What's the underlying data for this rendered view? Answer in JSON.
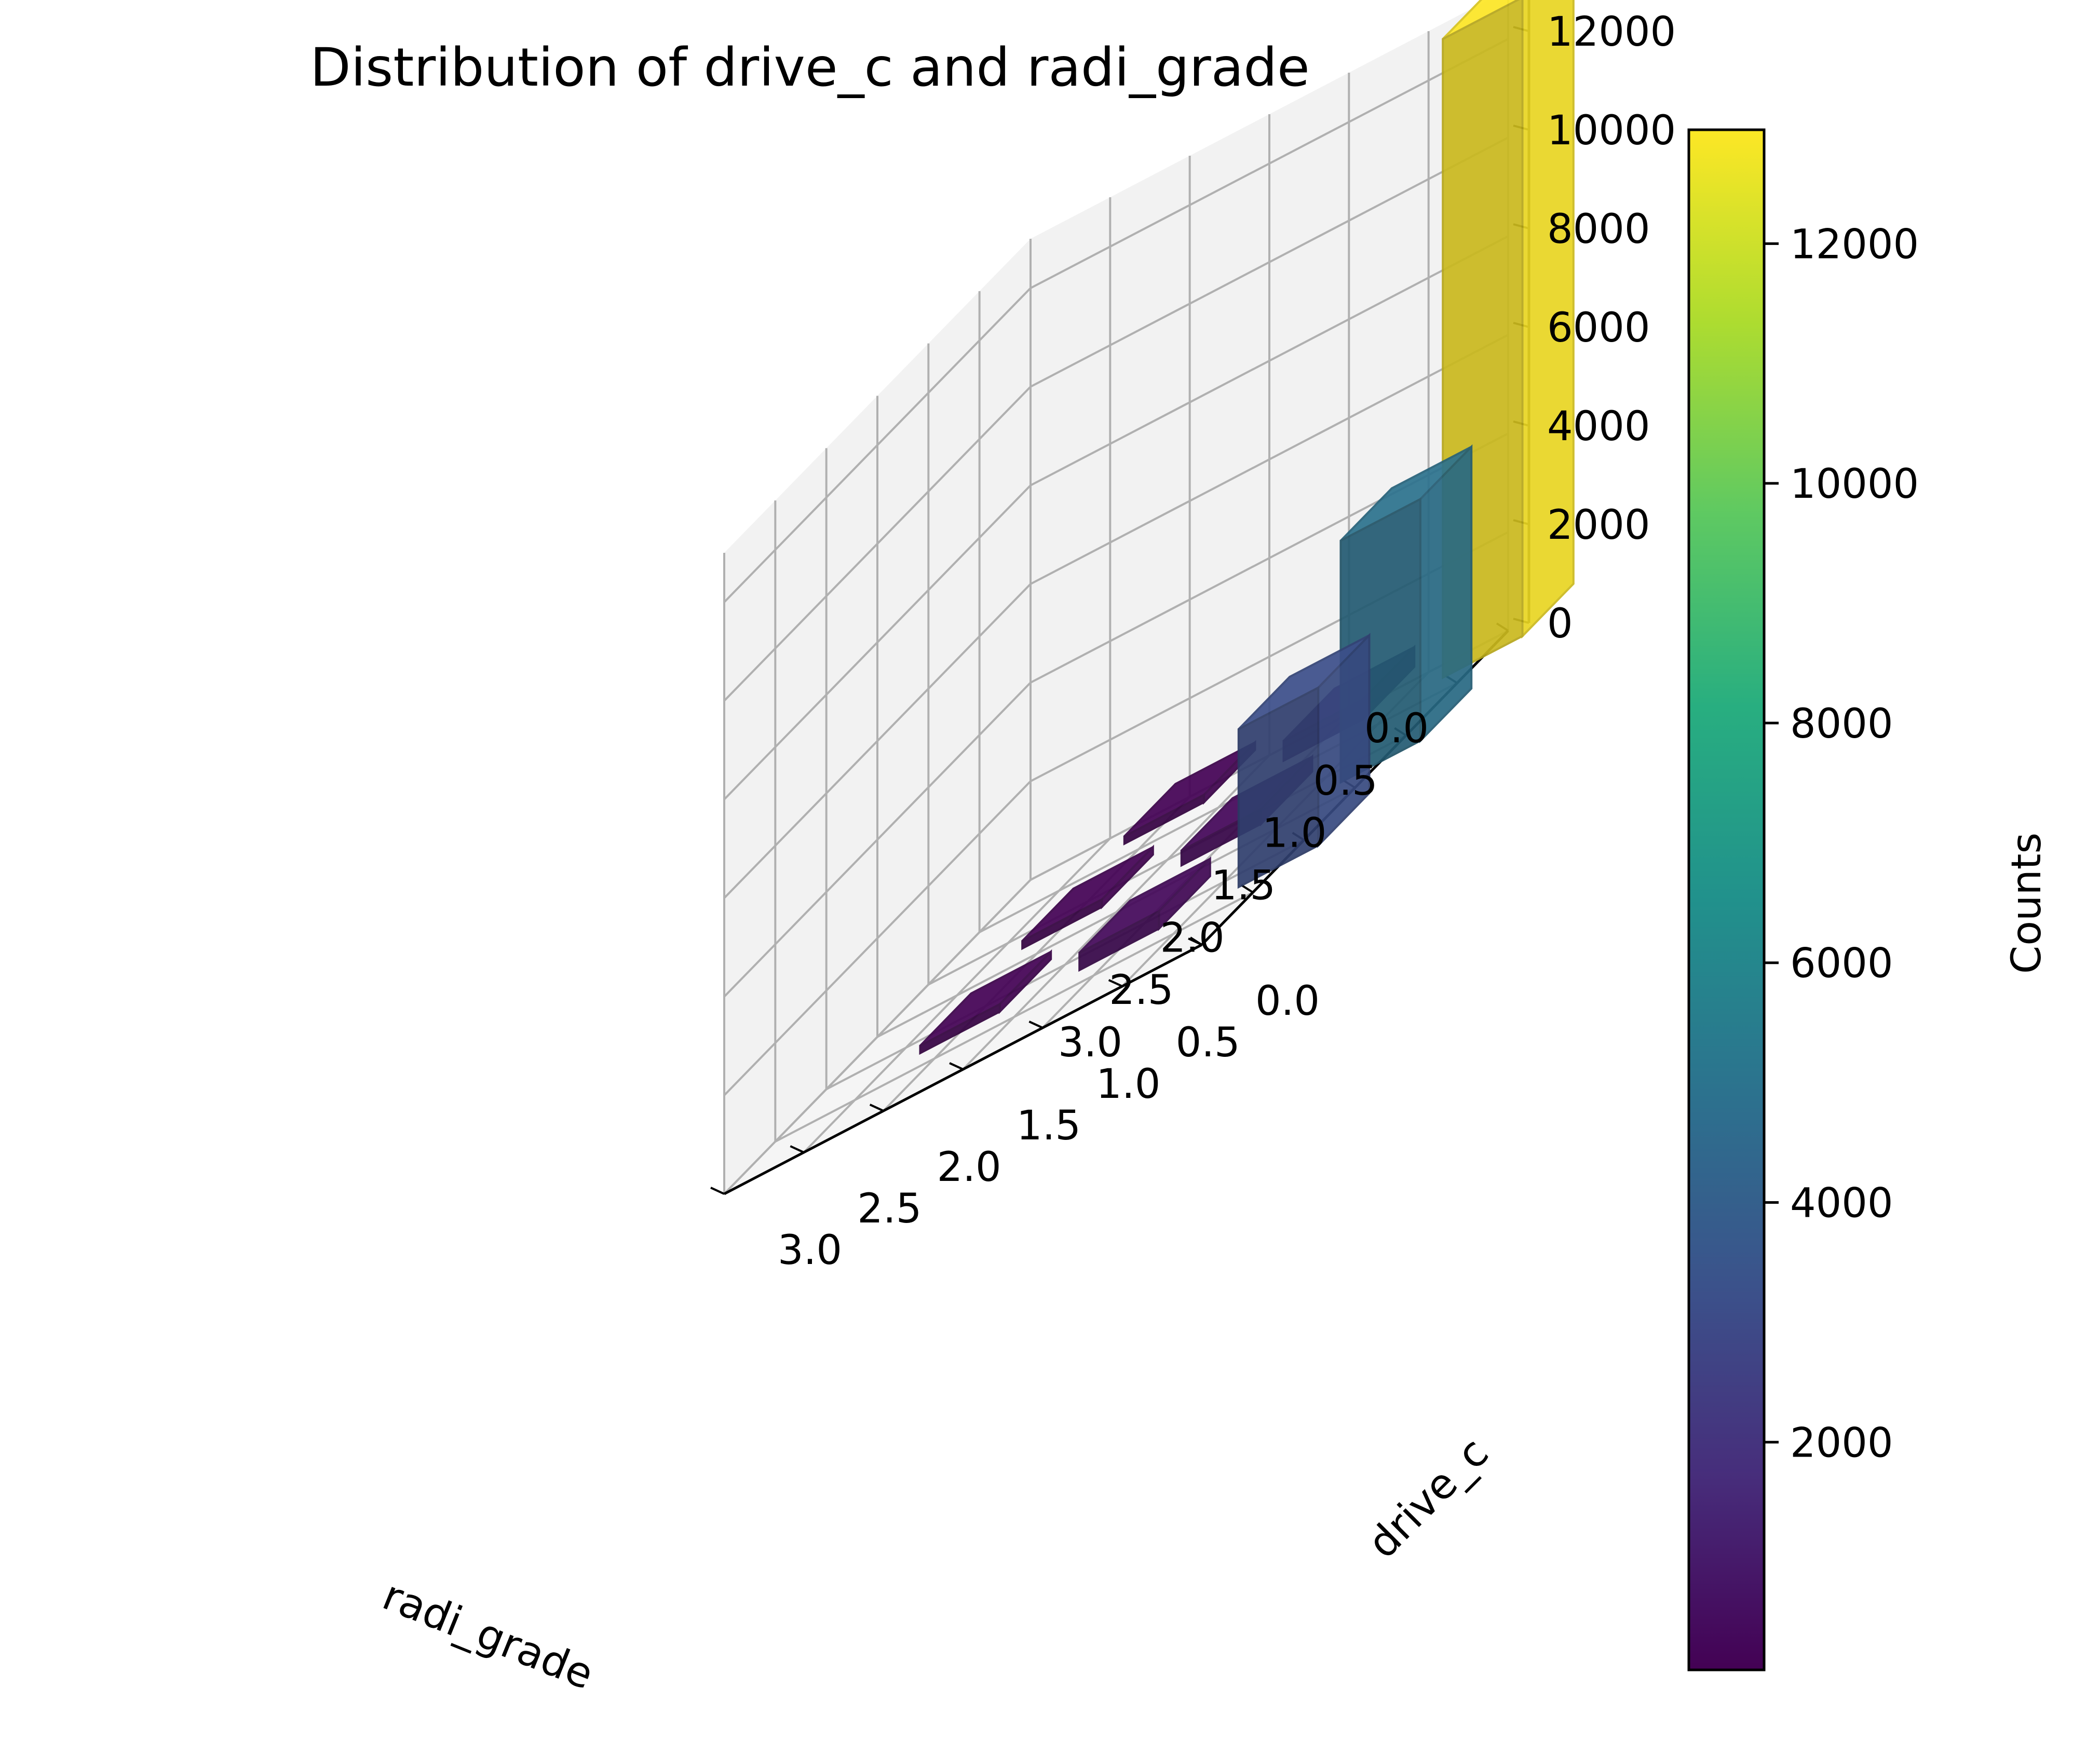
{
  "chart_data": {
    "type": "bar3d",
    "title": "Distribution of drive_c and radi_grade",
    "xlabel": "radi_grade",
    "ylabel": "drive_c",
    "colorbar_label": "Counts",
    "colormap": "viridis",
    "x_ticks": [
      "0.0",
      "0.5",
      "1.0",
      "1.5",
      "2.0",
      "2.5",
      "3.0"
    ],
    "y_ticks": [
      "0.0",
      "0.5",
      "1.0",
      "1.5",
      "2.0",
      "2.5",
      "3.0"
    ],
    "z_ticks": [
      "0",
      "2000",
      "4000",
      "6000",
      "8000",
      "10000",
      "12000"
    ],
    "colorbar_ticks": [
      "2000",
      "4000",
      "6000",
      "8000",
      "10000",
      "12000"
    ],
    "xlim": [
      0,
      3
    ],
    "ylim": [
      0,
      3
    ],
    "zlim": [
      0,
      13000
    ],
    "colorbar_range": [
      100,
      12950
    ],
    "bars": [
      {
        "radi_grade": 0,
        "drive_c": 2,
        "count": 150
      },
      {
        "radi_grade": 1,
        "drive_c": 2,
        "count": 150
      },
      {
        "radi_grade": 2,
        "drive_c": 2,
        "count": 150
      },
      {
        "radi_grade": 0,
        "drive_c": 1,
        "count": 400
      },
      {
        "radi_grade": 1,
        "drive_c": 1,
        "count": 300
      },
      {
        "radi_grade": 2,
        "drive_c": 1,
        "count": 350
      },
      {
        "radi_grade": 0,
        "drive_c": 0,
        "count": 12950
      },
      {
        "radi_grade": 1,
        "drive_c": 0,
        "count": 4900
      },
      {
        "radi_grade": 2,
        "drive_c": 0,
        "count": 3200
      }
    ]
  }
}
